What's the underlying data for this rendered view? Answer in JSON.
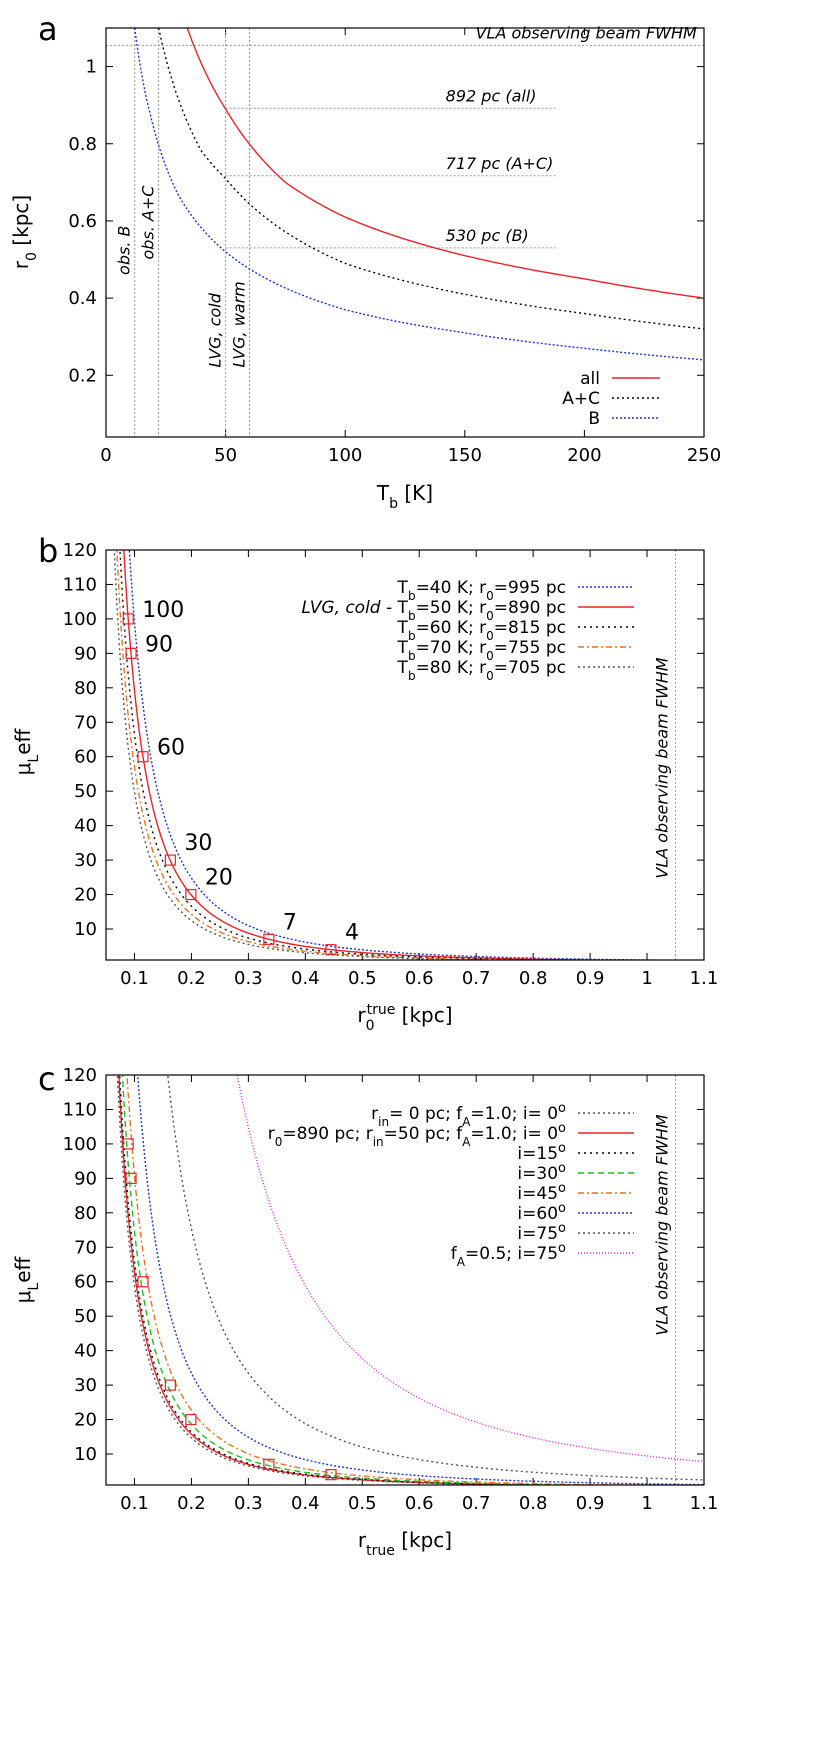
{
  "chart_data": [
    {
      "panel": "a",
      "type": "line",
      "xlabel": "T",
      "xlabel_sub": "b",
      "xlabel_unit": " [K]",
      "ylabel": "r",
      "ylabel_sub": "0",
      "ylabel_unit": " [kpc]",
      "xlim": [
        0,
        250
      ],
      "ylim": [
        0.04,
        1.1
      ],
      "xticks": [
        0,
        50,
        100,
        150,
        200,
        250
      ],
      "yticks": [
        0.2,
        0.4,
        0.6,
        0.8,
        1
      ],
      "legend_position": "bottom-right",
      "series": [
        {
          "name": "all",
          "color": "#e8242b",
          "dash": "",
          "curve": "power",
          "points": [
            [
              34,
              1.1
            ],
            [
              50,
              0.89
            ],
            [
              75,
              0.7
            ],
            [
              100,
              0.61
            ],
            [
              150,
              0.51
            ],
            [
              200,
              0.45
            ],
            [
              250,
              0.4
            ]
          ]
        },
        {
          "name": "A+C",
          "color": "#000000",
          "dash": "2 3",
          "curve": "power",
          "points": [
            [
              22,
              1.1
            ],
            [
              40,
              0.78
            ],
            [
              50,
              0.71
            ],
            [
              100,
              0.49
            ],
            [
              150,
              0.41
            ],
            [
              200,
              0.36
            ],
            [
              250,
              0.32
            ]
          ]
        },
        {
          "name": "B",
          "color": "#1f35c9",
          "dash": "2 2",
          "curve": "power",
          "points": [
            [
              12,
              1.1
            ],
            [
              20,
              0.84
            ],
            [
              30,
              0.67
            ],
            [
              50,
              0.52
            ],
            [
              100,
              0.37
            ],
            [
              150,
              0.31
            ],
            [
              200,
              0.27
            ],
            [
              250,
              0.24
            ]
          ]
        }
      ],
      "hlines": [
        {
          "y": 1.055,
          "x0": 0,
          "x1": 250,
          "label": "VLA observing beam FWHM",
          "label_x": 247,
          "label_anchor": "end"
        },
        {
          "y": 0.892,
          "x0": 50,
          "x1": 188,
          "label": "892 pc (all)",
          "label_x": 142,
          "label_anchor": "start"
        },
        {
          "y": 0.717,
          "x0": 50,
          "x1": 188,
          "label": "717 pc (A+C)",
          "label_x": 142,
          "label_anchor": "start"
        },
        {
          "y": 0.53,
          "x0": 50,
          "x1": 188,
          "label": "530 pc (B)",
          "label_x": 142,
          "label_anchor": "start"
        }
      ],
      "vlines": [
        {
          "x": 12,
          "label": "obs. B",
          "label_y": 0.46
        },
        {
          "x": 22,
          "label": "obs. A+C",
          "label_y": 0.5
        },
        {
          "x": 50,
          "label": "LVG, cold",
          "label_y": 0.22
        },
        {
          "x": 60,
          "label": "LVG, warm",
          "label_y": 0.22
        }
      ]
    },
    {
      "panel": "b",
      "type": "line",
      "xlabel": "r",
      "xlabel_sub": "0",
      "xlabel_sup": "true",
      "xlabel_unit": " [kpc]",
      "ylabel": "μ",
      "ylabel_sub": "L",
      "ylabel_after": "eff",
      "xlim": [
        0.05,
        1.1
      ],
      "ylim": [
        1,
        120
      ],
      "xticks": [
        0.1,
        0.2,
        0.3,
        0.4,
        0.5,
        0.6,
        0.7,
        0.8,
        0.9,
        1,
        1.1
      ],
      "yticks": [
        10,
        20,
        30,
        40,
        50,
        60,
        70,
        80,
        90,
        100,
        110,
        120
      ],
      "legend_position": "top-right",
      "vline": {
        "x": 1.05,
        "label": "VLA observing beam FWHM"
      },
      "series": [
        {
          "legend": [
            "T",
            "b",
            "=40 K; r",
            "0",
            "=995 pc"
          ],
          "prefix": "",
          "color": "#1f35c9",
          "dash": "2 2",
          "r0": 0.995
        },
        {
          "legend": [
            "T",
            "b",
            "=50 K; r",
            "0",
            "=890 pc"
          ],
          "prefix": "LVG, cold - ",
          "color": "#e8242b",
          "dash": "",
          "r0": 0.89
        },
        {
          "legend": [
            "T",
            "b",
            "=60 K; r",
            "0",
            "=815 pc"
          ],
          "prefix": "",
          "color": "#000000",
          "dash": "2 4",
          "r0": 0.815
        },
        {
          "legend": [
            "T",
            "b",
            "=70 K; r",
            "0",
            "=755 pc"
          ],
          "prefix": "",
          "color": "#e8731c",
          "dash": "6 3 2 3",
          "r0": 0.755
        },
        {
          "legend": [
            "T",
            "b",
            "=80 K; r",
            "0",
            "=705 pc"
          ],
          "prefix": "",
          "color": "#555555",
          "dash": "2 3",
          "r0": 0.705
        }
      ],
      "markers": [
        {
          "x": 0.089,
          "y": 100,
          "label": "100"
        },
        {
          "x": 0.094,
          "y": 90,
          "label": "90"
        },
        {
          "x": 0.115,
          "y": 60,
          "label": "60"
        },
        {
          "x": 0.163,
          "y": 30,
          "label": "30"
        },
        {
          "x": 0.199,
          "y": 20,
          "label": "20"
        },
        {
          "x": 0.336,
          "y": 7,
          "label": "7"
        },
        {
          "x": 0.445,
          "y": 4,
          "label": "4"
        }
      ]
    },
    {
      "panel": "c",
      "type": "line",
      "xlabel": "r",
      "xlabel_sub": "true",
      "xlabel_unit": " [kpc]",
      "ylabel": "μ",
      "ylabel_sub": "L",
      "ylabel_after": "eff",
      "xlim": [
        0.05,
        1.1
      ],
      "ylim": [
        1,
        120
      ],
      "xticks": [
        0.1,
        0.2,
        0.3,
        0.4,
        0.5,
        0.6,
        0.7,
        0.8,
        0.9,
        1,
        1.1
      ],
      "yticks": [
        10,
        20,
        30,
        40,
        50,
        60,
        70,
        80,
        90,
        100,
        110,
        120
      ],
      "legend_position": "top-right",
      "vline": {
        "x": 1.05,
        "label": "VLA observing beam FWHM"
      },
      "series": [
        {
          "legend": [
            [
              "r",
              ""
            ],
            [
              "in",
              "sub"
            ],
            [
              "=  0 pc; f",
              ""
            ],
            [
              "A",
              "sub"
            ],
            [
              "=1.0; i=  0",
              ""
            ],
            [
              "o",
              "sup"
            ]
          ],
          "color": "#555555",
          "dash": "2 3",
          "scale": 0.86
        },
        {
          "legend": [
            [
              "r",
              ""
            ],
            [
              "0",
              "sub"
            ],
            [
              "=890 pc; r",
              ""
            ],
            [
              "in",
              "sub"
            ],
            [
              "=50 pc; f",
              ""
            ],
            [
              "A",
              "sub"
            ],
            [
              "=1.0; i=  0",
              ""
            ],
            [
              "o",
              "sup"
            ]
          ],
          "color": "#e8242b",
          "dash": "",
          "scale": 0.89
        },
        {
          "legend": [
            [
              "i=15",
              ""
            ],
            [
              "o",
              "sup"
            ]
          ],
          "color": "#000000",
          "dash": "2 4",
          "scale": 0.91
        },
        {
          "legend": [
            [
              "i=30",
              ""
            ],
            [
              "o",
              "sup"
            ]
          ],
          "color": "#19c219",
          "dash": "6 4",
          "scale": 0.97
        },
        {
          "legend": [
            [
              "i=45",
              ""
            ],
            [
              "o",
              "sup"
            ]
          ],
          "color": "#e8731c",
          "dash": "6 3 2 3",
          "scale": 1.07
        },
        {
          "legend": [
            [
              "i=60",
              ""
            ],
            [
              "o",
              "sup"
            ]
          ],
          "color": "#1f35c9",
          "dash": "2 2",
          "scale": 1.3
        },
        {
          "legend": [
            [
              "i=75",
              ""
            ],
            [
              "o",
              "sup"
            ]
          ],
          "color": "#555555",
          "dash": "2 3",
          "scale": 1.95
        },
        {
          "legend": [
            [
              "f",
              ""
            ],
            [
              "A",
              "sub"
            ],
            [
              "=0.5; i=75",
              ""
            ],
            [
              "o",
              "sup"
            ]
          ],
          "color": "#e020e0",
          "dash": "1 2",
          "scale": 3.45
        }
      ],
      "markers": [
        {
          "x": 0.089,
          "y": 100
        },
        {
          "x": 0.094,
          "y": 90
        },
        {
          "x": 0.115,
          "y": 60
        },
        {
          "x": 0.163,
          "y": 30
        },
        {
          "x": 0.199,
          "y": 20
        },
        {
          "x": 0.336,
          "y": 7
        },
        {
          "x": 0.445,
          "y": 4
        }
      ]
    }
  ]
}
